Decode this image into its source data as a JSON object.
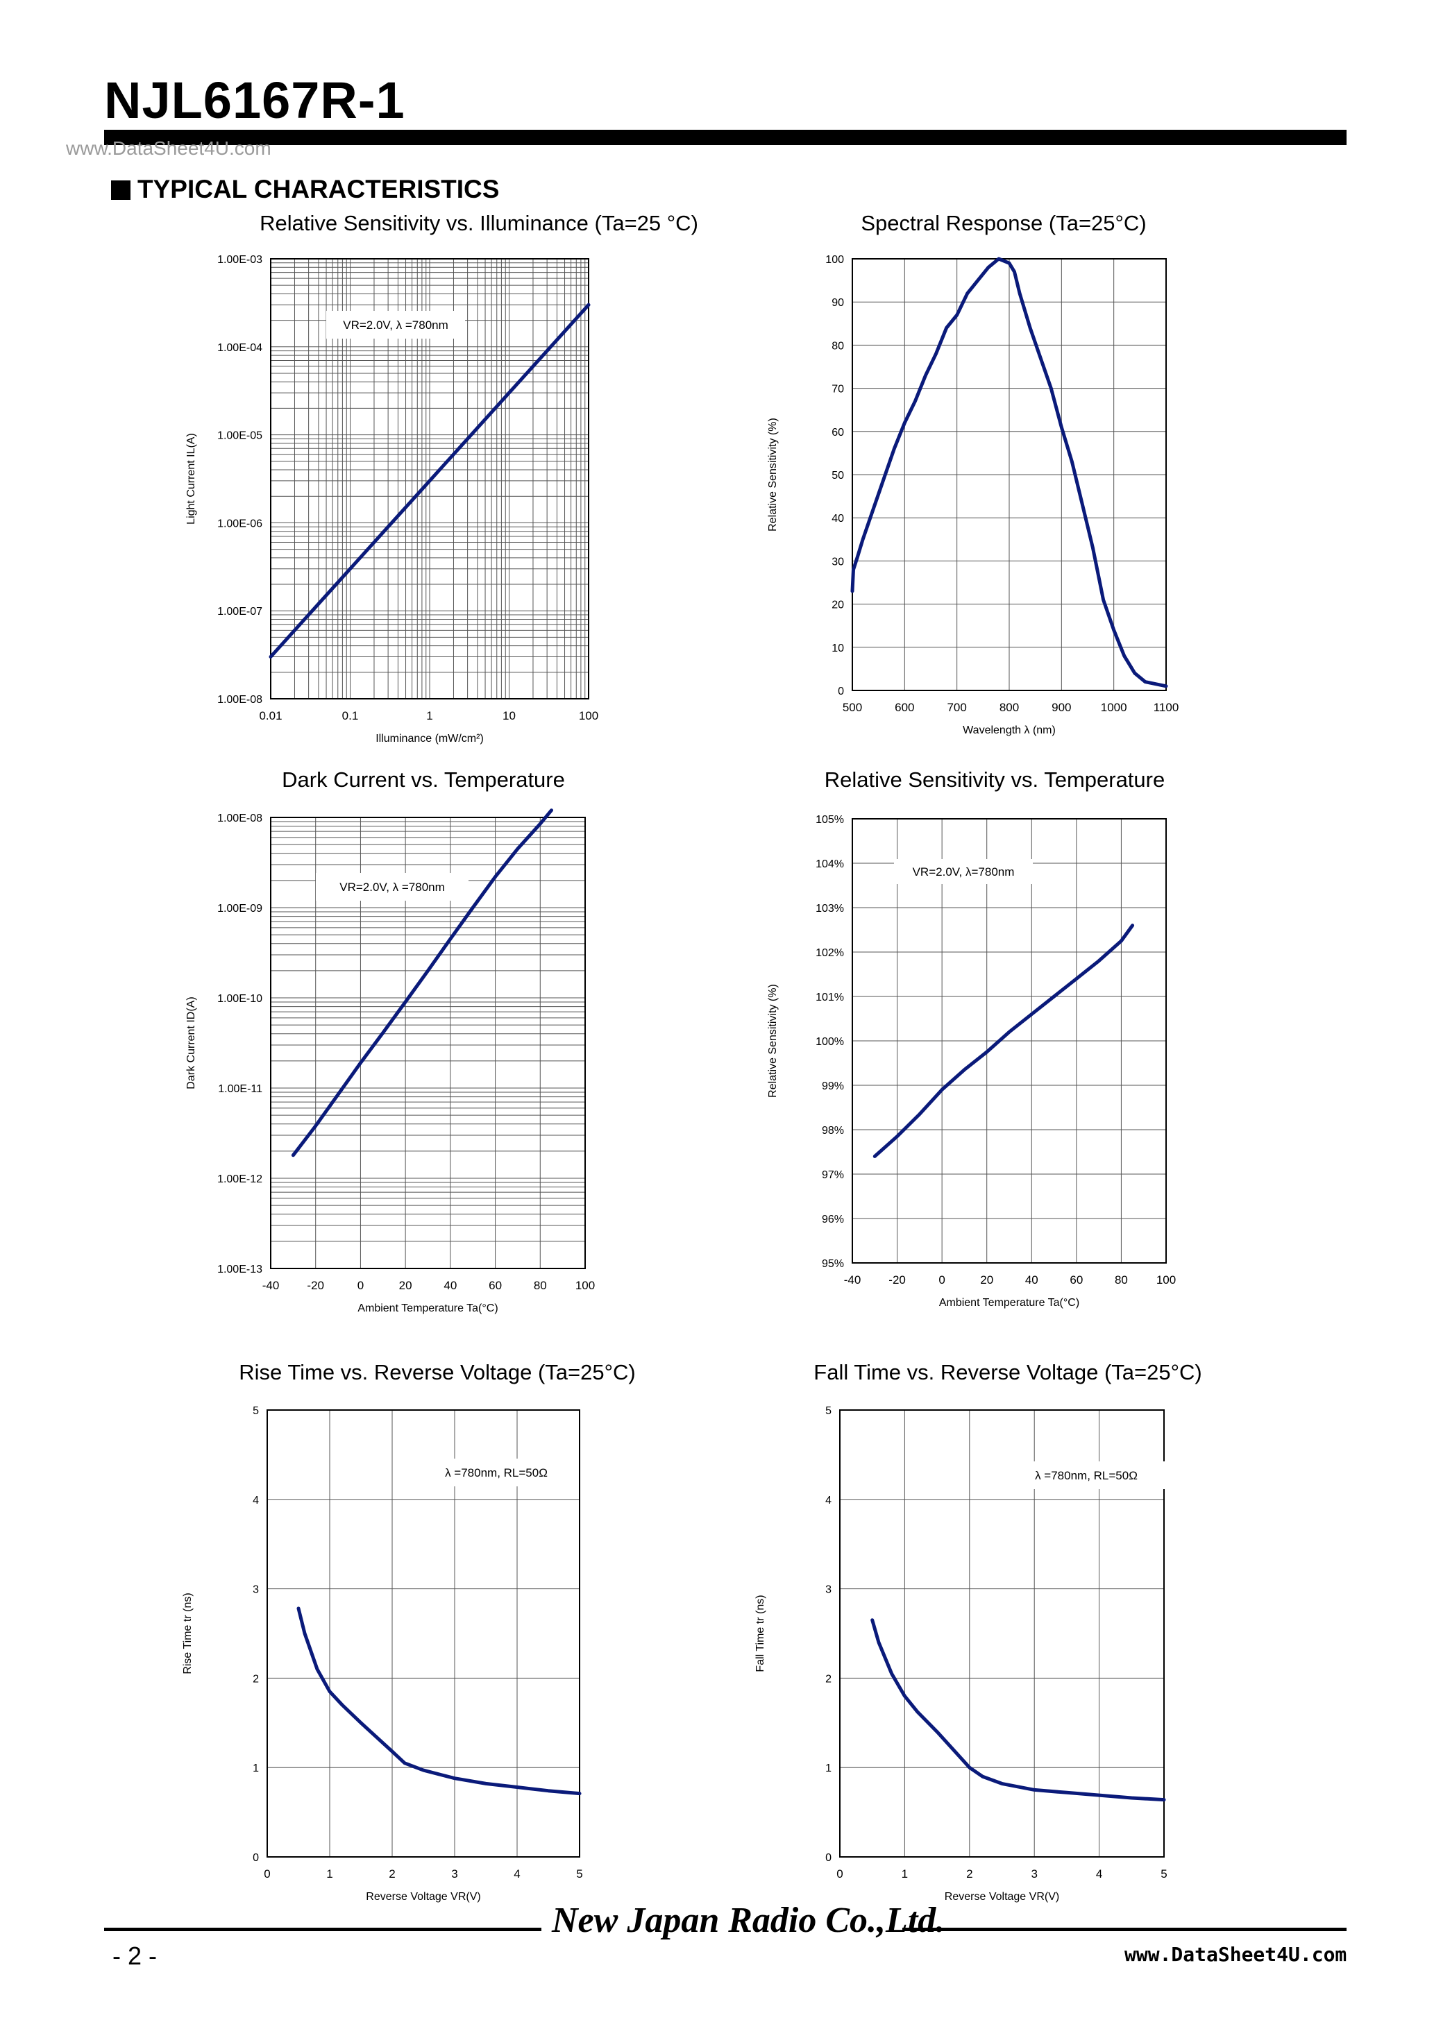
{
  "header": {
    "title": "NJL6167R-1",
    "watermark": "www.DataSheet4U.com"
  },
  "section": {
    "heading": "TYPICAL CHARACTERISTICS"
  },
  "colors": {
    "curve": "#0a1a7a",
    "grid": "#555555",
    "text": "#000000"
  },
  "chart_data": [
    {
      "id": "sens_illum",
      "type": "line",
      "title": "Relative Sensitivity vs. Illuminance (Ta=25 °C)",
      "xlabel": "Illuminance  (mW/cm²)",
      "ylabel": "Light Current  IL(A)",
      "annotation": "VR=2.0V,  λ =780nm",
      "xscale": "log",
      "yscale": "log",
      "xlim": [
        0.01,
        100
      ],
      "ylim": [
        1e-08,
        0.001
      ],
      "x_ticks": [
        "0.01",
        "0.1",
        "1",
        "10",
        "100"
      ],
      "y_ticks": [
        "1.00E-08",
        "1.00E-07",
        "1.00E-06",
        "1.00E-05",
        "1.00E-04",
        "1.00E-03"
      ],
      "grid": true,
      "series": [
        {
          "x": [
            0.01,
            0.1,
            1,
            10,
            100
          ],
          "y": [
            3e-08,
            3e-07,
            3e-06,
            3e-05,
            0.0003
          ]
        }
      ]
    },
    {
      "id": "spectral",
      "type": "line",
      "title": "Spectral Response (Ta=25°C)",
      "xlabel": "Wavelength λ (nm)",
      "ylabel": "Relative Sensitivity (%)",
      "xlim": [
        500,
        1100
      ],
      "ylim": [
        0,
        100
      ],
      "x_ticks": [
        "500",
        "600",
        "700",
        "800",
        "900",
        "1000",
        "1100"
      ],
      "y_ticks": [
        "0",
        "10",
        "20",
        "30",
        "40",
        "50",
        "60",
        "70",
        "80",
        "90",
        "100"
      ],
      "grid": true,
      "series": [
        {
          "x": [
            500,
            502,
            510,
            520,
            540,
            560,
            580,
            600,
            620,
            640,
            660,
            680,
            700,
            720,
            740,
            760,
            780,
            800,
            810,
            820,
            840,
            860,
            880,
            900,
            920,
            940,
            960,
            980,
            1000,
            1020,
            1040,
            1060,
            1080,
            1100
          ],
          "y": [
            23,
            28,
            31,
            35,
            42,
            49,
            56,
            62,
            67,
            73,
            78,
            84,
            87,
            92,
            95,
            98,
            100,
            99,
            97,
            92,
            84,
            77,
            70,
            61,
            53,
            43,
            33,
            21,
            14,
            8,
            4,
            2,
            1.5,
            1
          ]
        }
      ]
    },
    {
      "id": "dark_temp",
      "type": "line",
      "title": "Dark Current vs. Temperature",
      "xlabel": "Ambient Temperature Ta(°C)",
      "ylabel": "Dark Current ID(A)",
      "annotation": "VR=2.0V,  λ =780nm",
      "yscale": "log",
      "xlim": [
        -40,
        100
      ],
      "ylim": [
        1e-13,
        1e-08
      ],
      "x_ticks": [
        "-40",
        "-20",
        "0",
        "20",
        "40",
        "60",
        "80",
        "100"
      ],
      "y_ticks": [
        "1.00E-13",
        "1.00E-12",
        "1.00E-11",
        "1.00E-10",
        "1.00E-09",
        "1.00E-08"
      ],
      "grid": true,
      "series": [
        {
          "x": [
            -30,
            -20,
            -10,
            0,
            10,
            20,
            30,
            40,
            50,
            60,
            70,
            80,
            85
          ],
          "y": [
            1.8e-12,
            3.8e-12,
            8.5e-12,
            1.9e-11,
            4.1e-11,
            9e-11,
            2e-10,
            4.5e-10,
            1e-09,
            2.2e-09,
            4.5e-09,
            8.5e-09,
            1.2e-08
          ]
        }
      ]
    },
    {
      "id": "sens_temp",
      "type": "line",
      "title": "Relative Sensitivity vs. Temperature",
      "xlabel": "Ambient Temperature Ta(°C)",
      "ylabel": "Relative Sensitivity (%)",
      "annotation": "VR=2.0V,  λ=780nm",
      "xlim": [
        -40,
        100
      ],
      "ylim": [
        95,
        105
      ],
      "x_ticks": [
        "-40",
        "-20",
        "0",
        "20",
        "40",
        "60",
        "80",
        "100"
      ],
      "y_ticks": [
        "95%",
        "96%",
        "97%",
        "98%",
        "99%",
        "100%",
        "101%",
        "102%",
        "103%",
        "104%",
        "105%"
      ],
      "grid": true,
      "series": [
        {
          "x": [
            -30,
            -20,
            -10,
            0,
            10,
            20,
            30,
            40,
            50,
            60,
            70,
            80,
            85
          ],
          "y": [
            97.4,
            97.85,
            98.35,
            98.9,
            99.35,
            99.75,
            100.2,
            100.6,
            101.0,
            101.4,
            101.8,
            102.25,
            102.6
          ]
        }
      ]
    },
    {
      "id": "rise",
      "type": "line",
      "title": "Rise Time vs. Reverse Voltage (Ta=25°C)",
      "xlabel": "Reverse Voltage  VR(V)",
      "ylabel": "Rise Time  tr (ns)",
      "annotation": "λ =780nm, RL=50Ω",
      "xlim": [
        0,
        5
      ],
      "ylim": [
        0,
        5
      ],
      "x_ticks": [
        "0",
        "1",
        "2",
        "3",
        "4",
        "5"
      ],
      "y_ticks": [
        "0",
        "1",
        "2",
        "3",
        "4",
        "5"
      ],
      "grid": true,
      "series": [
        {
          "x": [
            0.5,
            0.6,
            0.8,
            1.0,
            1.2,
            1.5,
            2.0,
            2.2,
            2.5,
            3.0,
            3.5,
            4.0,
            4.5,
            5.0
          ],
          "y": [
            2.78,
            2.5,
            2.1,
            1.85,
            1.7,
            1.5,
            1.18,
            1.05,
            0.97,
            0.88,
            0.82,
            0.78,
            0.74,
            0.71
          ]
        }
      ]
    },
    {
      "id": "fall",
      "type": "line",
      "title": "Fall Time vs. Reverse Voltage (Ta=25°C)",
      "xlabel": "Reverse Voltage  VR(V)",
      "ylabel": "Fall Time  tr (ns)",
      "annotation": "λ =780nm, RL=50Ω",
      "xlim": [
        0,
        5
      ],
      "ylim": [
        0,
        5
      ],
      "x_ticks": [
        "0",
        "1",
        "2",
        "3",
        "4",
        "5"
      ],
      "y_ticks": [
        "0",
        "1",
        "2",
        "3",
        "4",
        "5"
      ],
      "grid": true,
      "series": [
        {
          "x": [
            0.5,
            0.6,
            0.8,
            1.0,
            1.2,
            1.5,
            2.0,
            2.2,
            2.5,
            3.0,
            3.5,
            4.0,
            4.5,
            5.0
          ],
          "y": [
            2.65,
            2.4,
            2.05,
            1.8,
            1.62,
            1.4,
            1.0,
            0.9,
            0.82,
            0.75,
            0.72,
            0.69,
            0.66,
            0.64
          ]
        }
      ]
    }
  ],
  "footer": {
    "logo": "New Japan Radio Co.,Ltd.",
    "page_number": "- 2 -",
    "url": "www.DataSheet4U.com"
  }
}
